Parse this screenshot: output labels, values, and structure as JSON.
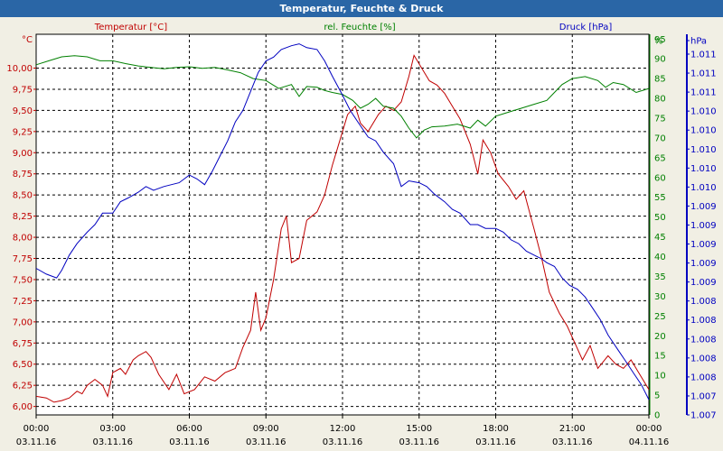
{
  "title": "Temperatur, Feuchte & Druck",
  "chart_data": {
    "type": "line",
    "title": "Temperatur, Feuchte & Druck",
    "x": [
      "00:00",
      "03:00",
      "06:00",
      "09:00",
      "12:00",
      "15:00",
      "18:00",
      "21:00",
      "00:00"
    ],
    "x_dates": [
      "03.11.16",
      "03.11.16",
      "03.11.16",
      "03.11.16",
      "03.11.16",
      "03.11.16",
      "03.11.16",
      "03.11.16",
      "04.11.16"
    ],
    "xlim": [
      0,
      24
    ],
    "axes": {
      "left": {
        "label": "Temperatur [°C]",
        "unit": "°C",
        "ylim": [
          5.9,
          10.4
        ],
        "ticks": [
          "6,00",
          "6,25",
          "6,50",
          "6,75",
          "7,00",
          "7,25",
          "7,50",
          "7,75",
          "8,00",
          "8,25",
          "8,50",
          "8,75",
          "9,00",
          "9,25",
          "9,50",
          "9,75",
          "10,00"
        ],
        "tick_values": [
          6.0,
          6.25,
          6.5,
          6.75,
          7.0,
          7.25,
          7.5,
          7.75,
          8.0,
          8.25,
          8.5,
          8.75,
          9.0,
          9.25,
          9.5,
          9.75,
          10.0
        ],
        "color": "#c00000"
      },
      "right1": {
        "label": "rel. Feuchte [%]",
        "unit": "%",
        "ylim": [
          0,
          96.2
        ],
        "ticks": [
          "0",
          "5",
          "10",
          "15",
          "20",
          "25",
          "30",
          "35",
          "40",
          "45",
          "50",
          "55",
          "60",
          "65",
          "70",
          "75",
          "80",
          "85",
          "90",
          "95",
          "%"
        ],
        "color": "#008000"
      },
      "right2": {
        "label": "Druck [hPa]",
        "unit": "hPa",
        "ticks": [
          "1.007",
          "1.007",
          "1.008",
          "1.008",
          "1.008",
          "1.008",
          "1.008",
          "1.009",
          "1.009",
          "1.009",
          "1.009",
          "1.009",
          "1.010",
          "1.010",
          "1.010",
          "1.010",
          "1.010",
          "1.011",
          "1.011",
          "1.011",
          "hPa"
        ],
        "color": "#0000c0"
      }
    },
    "series": [
      {
        "name": "Temperatur [°C]",
        "axis": "left",
        "color": "#c00000",
        "points": [
          [
            0,
            6.12
          ],
          [
            0.4,
            6.1
          ],
          [
            0.7,
            6.05
          ],
          [
            1,
            6.07
          ],
          [
            1.3,
            6.1
          ],
          [
            1.6,
            6.18
          ],
          [
            1.8,
            6.15
          ],
          [
            2,
            6.25
          ],
          [
            2.3,
            6.32
          ],
          [
            2.6,
            6.25
          ],
          [
            2.8,
            6.12
          ],
          [
            3,
            6.4
          ],
          [
            3.3,
            6.45
          ],
          [
            3.5,
            6.38
          ],
          [
            3.8,
            6.55
          ],
          [
            4,
            6.6
          ],
          [
            4.3,
            6.65
          ],
          [
            4.5,
            6.58
          ],
          [
            4.8,
            6.38
          ],
          [
            5.2,
            6.2
          ],
          [
            5.5,
            6.38
          ],
          [
            5.8,
            6.15
          ],
          [
            6.2,
            6.2
          ],
          [
            6.6,
            6.35
          ],
          [
            7,
            6.3
          ],
          [
            7.4,
            6.4
          ],
          [
            7.8,
            6.45
          ],
          [
            8.1,
            6.7
          ],
          [
            8.4,
            6.9
          ],
          [
            8.6,
            7.35
          ],
          [
            8.8,
            6.9
          ],
          [
            9.0,
            7.05
          ],
          [
            9.3,
            7.5
          ],
          [
            9.6,
            8.1
          ],
          [
            9.8,
            8.25
          ],
          [
            10.0,
            7.7
          ],
          [
            10.3,
            7.75
          ],
          [
            10.6,
            8.2
          ],
          [
            11,
            8.3
          ],
          [
            11.3,
            8.5
          ],
          [
            11.6,
            8.85
          ],
          [
            11.9,
            9.15
          ],
          [
            12.2,
            9.45
          ],
          [
            12.5,
            9.55
          ],
          [
            12.7,
            9.35
          ],
          [
            13,
            9.25
          ],
          [
            13.4,
            9.45
          ],
          [
            13.7,
            9.55
          ],
          [
            14,
            9.5
          ],
          [
            14.3,
            9.6
          ],
          [
            14.6,
            9.9
          ],
          [
            14.8,
            10.15
          ],
          [
            15.1,
            10.0
          ],
          [
            15.4,
            9.85
          ],
          [
            15.7,
            9.8
          ],
          [
            16,
            9.7
          ],
          [
            16.3,
            9.55
          ],
          [
            16.6,
            9.4
          ],
          [
            17,
            9.1
          ],
          [
            17.3,
            8.75
          ],
          [
            17.5,
            9.15
          ],
          [
            17.8,
            9.0
          ],
          [
            18.1,
            8.75
          ],
          [
            18.5,
            8.6
          ],
          [
            18.8,
            8.45
          ],
          [
            19.1,
            8.55
          ],
          [
            19.5,
            8.1
          ],
          [
            19.8,
            7.75
          ],
          [
            20.1,
            7.35
          ],
          [
            20.5,
            7.1
          ],
          [
            20.8,
            6.95
          ],
          [
            21.1,
            6.75
          ],
          [
            21.4,
            6.55
          ],
          [
            21.7,
            6.72
          ],
          [
            22,
            6.45
          ],
          [
            22.4,
            6.6
          ],
          [
            22.7,
            6.5
          ],
          [
            23,
            6.45
          ],
          [
            23.3,
            6.55
          ],
          [
            23.6,
            6.4
          ],
          [
            24,
            6.2
          ]
        ]
      },
      {
        "name": "rel. Feuchte [%]",
        "axis": "right1",
        "color": "#008000",
        "points": [
          [
            0,
            88.5
          ],
          [
            0.5,
            89.5
          ],
          [
            1,
            90.5
          ],
          [
            1.5,
            90.8
          ],
          [
            2,
            90.5
          ],
          [
            2.5,
            89.5
          ],
          [
            3,
            89.5
          ],
          [
            3.5,
            88.8
          ],
          [
            4,
            88.2
          ],
          [
            4.5,
            87.8
          ],
          [
            5,
            87.5
          ],
          [
            5.5,
            87.8
          ],
          [
            6,
            88.0
          ],
          [
            6.5,
            87.6
          ],
          [
            7,
            87.8
          ],
          [
            7.5,
            87.2
          ],
          [
            8,
            86.5
          ],
          [
            8.5,
            85.0
          ],
          [
            9,
            84.5
          ],
          [
            9.5,
            82.5
          ],
          [
            10,
            83.5
          ],
          [
            10.3,
            80.5
          ],
          [
            10.6,
            83.0
          ],
          [
            11,
            82.8
          ],
          [
            11.3,
            82.0
          ],
          [
            11.6,
            81.5
          ],
          [
            12,
            81.0
          ],
          [
            12.4,
            79.5
          ],
          [
            12.7,
            77.5
          ],
          [
            13,
            78.5
          ],
          [
            13.3,
            80.0
          ],
          [
            13.6,
            78.0
          ],
          [
            14,
            77.5
          ],
          [
            14.3,
            75.5
          ],
          [
            14.6,
            72.5
          ],
          [
            14.9,
            70.0
          ],
          [
            15.2,
            72.0
          ],
          [
            15.5,
            72.8
          ],
          [
            16,
            73.0
          ],
          [
            16.5,
            73.5
          ],
          [
            17,
            72.5
          ],
          [
            17.3,
            74.5
          ],
          [
            17.6,
            73.0
          ],
          [
            18,
            75.5
          ],
          [
            18.5,
            76.5
          ],
          [
            19,
            77.5
          ],
          [
            19.5,
            78.5
          ],
          [
            20,
            79.5
          ],
          [
            20.3,
            81.5
          ],
          [
            20.6,
            83.5
          ],
          [
            21,
            85.0
          ],
          [
            21.5,
            85.5
          ],
          [
            22,
            84.5
          ],
          [
            22.3,
            82.8
          ],
          [
            22.6,
            84.0
          ],
          [
            23,
            83.5
          ],
          [
            23.5,
            81.5
          ],
          [
            24,
            82.5
          ]
        ]
      },
      {
        "name": "Druck [hPa]",
        "axis": "right2",
        "color": "#0000c0",
        "axis_fraction": true,
        "points": [
          [
            0,
            0.385
          ],
          [
            0.4,
            0.37
          ],
          [
            0.8,
            0.36
          ],
          [
            1.0,
            0.38
          ],
          [
            1.3,
            0.42
          ],
          [
            1.6,
            0.45
          ],
          [
            2,
            0.48
          ],
          [
            2.3,
            0.5
          ],
          [
            2.6,
            0.53
          ],
          [
            3,
            0.53
          ],
          [
            3.3,
            0.56
          ],
          [
            3.6,
            0.57
          ],
          [
            4,
            0.585
          ],
          [
            4.3,
            0.6
          ],
          [
            4.6,
            0.59
          ],
          [
            5,
            0.6
          ],
          [
            5.3,
            0.605
          ],
          [
            5.6,
            0.61
          ],
          [
            6,
            0.63
          ],
          [
            6.3,
            0.62
          ],
          [
            6.6,
            0.605
          ],
          [
            6.9,
            0.64
          ],
          [
            7.2,
            0.68
          ],
          [
            7.5,
            0.72
          ],
          [
            7.8,
            0.77
          ],
          [
            8.1,
            0.8
          ],
          [
            8.4,
            0.85
          ],
          [
            8.7,
            0.9
          ],
          [
            9,
            0.93
          ],
          [
            9.3,
            0.94
          ],
          [
            9.6,
            0.96
          ],
          [
            10,
            0.97
          ],
          [
            10.3,
            0.975
          ],
          [
            10.6,
            0.965
          ],
          [
            11,
            0.96
          ],
          [
            11.3,
            0.93
          ],
          [
            11.6,
            0.89
          ],
          [
            12,
            0.84
          ],
          [
            12.3,
            0.8
          ],
          [
            12.6,
            0.77
          ],
          [
            13,
            0.73
          ],
          [
            13.3,
            0.72
          ],
          [
            13.6,
            0.69
          ],
          [
            14,
            0.66
          ],
          [
            14.3,
            0.6
          ],
          [
            14.6,
            0.615
          ],
          [
            15,
            0.61
          ],
          [
            15.3,
            0.6
          ],
          [
            15.6,
            0.58
          ],
          [
            16,
            0.56
          ],
          [
            16.3,
            0.54
          ],
          [
            16.6,
            0.53
          ],
          [
            17,
            0.5
          ],
          [
            17.3,
            0.5
          ],
          [
            17.6,
            0.49
          ],
          [
            18,
            0.49
          ],
          [
            18.3,
            0.48
          ],
          [
            18.6,
            0.46
          ],
          [
            18.9,
            0.45
          ],
          [
            19.2,
            0.43
          ],
          [
            19.5,
            0.42
          ],
          [
            19.8,
            0.41
          ],
          [
            20,
            0.4
          ],
          [
            20.3,
            0.39
          ],
          [
            20.6,
            0.36
          ],
          [
            20.9,
            0.34
          ],
          [
            21.2,
            0.33
          ],
          [
            21.5,
            0.31
          ],
          [
            21.8,
            0.28
          ],
          [
            22.1,
            0.25
          ],
          [
            22.4,
            0.21
          ],
          [
            22.8,
            0.17
          ],
          [
            23.1,
            0.14
          ],
          [
            23.4,
            0.11
          ],
          [
            23.7,
            0.08
          ],
          [
            24,
            0.04
          ]
        ]
      }
    ],
    "grid": true
  }
}
